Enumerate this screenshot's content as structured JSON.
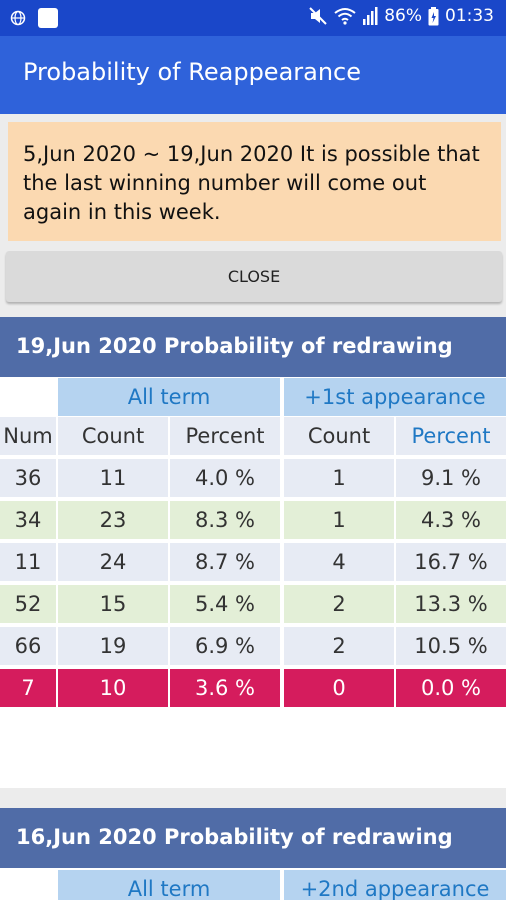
{
  "status_bar": {
    "battery": "86%",
    "time": "01:33",
    "colors": {
      "background": "#1a47c9"
    }
  },
  "app_bar": {
    "title": "Probability of Reappearance",
    "color": "#2f62da"
  },
  "notice": {
    "text": "5,Jun 2020 ~ 19,Jun 2020 It is possible that the last winning number will come out again in this week.",
    "color": "#fbd9b1"
  },
  "close_button": {
    "label": "CLOSE"
  },
  "sections": [
    {
      "title": "19,Jun 2020 Probability of redrawing",
      "group_all": "All term",
      "group_appearance": "+1st appearance",
      "headers": [
        "Num",
        "Count",
        "Percent",
        "Count",
        "Percent"
      ],
      "rows": [
        [
          "36",
          "11",
          "4.0 %",
          "1",
          "9.1 %"
        ],
        [
          "34",
          "23",
          "8.3 %",
          "1",
          "4.3 %"
        ],
        [
          "11",
          "24",
          "8.7 %",
          "4",
          "16.7 %"
        ],
        [
          "52",
          "15",
          "5.4 %",
          "2",
          "13.3 %"
        ],
        [
          "66",
          "19",
          "6.9 %",
          "2",
          "10.5 %"
        ],
        [
          "7",
          "10",
          "3.6 %",
          "0",
          "0.0 %"
        ]
      ],
      "highlight_color": "#d51c5d"
    },
    {
      "title": "16,Jun 2020 Probability of redrawing",
      "group_all": "All term",
      "group_appearance": "+2nd appearance"
    }
  ]
}
